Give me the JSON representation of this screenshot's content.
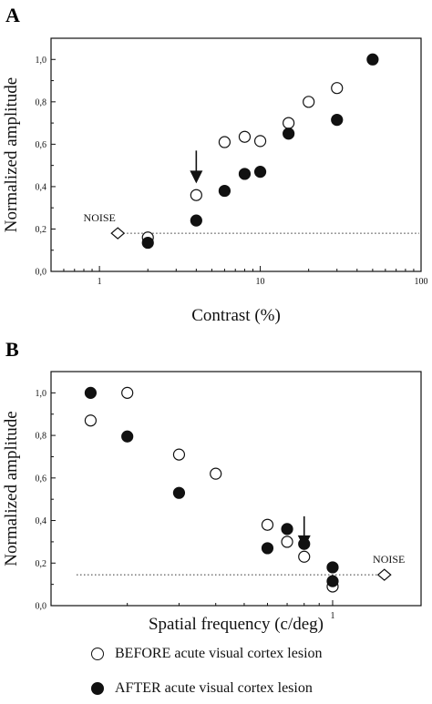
{
  "chart_data": [
    {
      "panel": "A",
      "type": "scatter",
      "x_scale": "log",
      "xlim": [
        0.5,
        100
      ],
      "ylim": [
        0.0,
        1.1
      ],
      "xlabel": "Contrast (%)",
      "ylabel": "Normalized amplitude",
      "x_ticks": [
        1,
        10,
        100
      ],
      "x_tick_labels": [
        "1",
        "10",
        "100"
      ],
      "y_ticks": [
        0.0,
        0.2,
        0.4,
        0.6,
        0.8,
        1.0
      ],
      "y_tick_labels": [
        "0,0",
        "0,2",
        "0,4",
        "0,6",
        "0,8",
        "1,0"
      ],
      "series": [
        {
          "marker": "open-circle",
          "x": [
            2,
            4,
            6,
            8,
            10,
            15,
            20,
            30
          ],
          "y": [
            0.16,
            0.36,
            0.61,
            0.635,
            0.615,
            0.7,
            0.8,
            0.865
          ]
        },
        {
          "marker": "filled-circle",
          "x": [
            2,
            4,
            6,
            8,
            10,
            15,
            30,
            50
          ],
          "y": [
            0.135,
            0.24,
            0.38,
            0.46,
            0.47,
            0.65,
            0.715,
            1.0
          ]
        }
      ],
      "noise": {
        "label": "NOISE",
        "x": 1.3,
        "y": 0.18
      },
      "arrow_x": 4
    },
    {
      "panel": "B",
      "type": "scatter",
      "x_scale": "log",
      "xlim": [
        0.11,
        2.0
      ],
      "ylim": [
        0.0,
        1.1
      ],
      "xlabel": "Spatial frequency (c/deg)",
      "ylabel": "Normalized amplitude",
      "x_ticks": [
        1
      ],
      "x_tick_labels": [
        "1"
      ],
      "y_ticks": [
        0.0,
        0.2,
        0.4,
        0.6,
        0.8,
        1.0
      ],
      "y_tick_labels": [
        "0,0",
        "0,2",
        "0,4",
        "0,6",
        "0,8",
        "1,0"
      ],
      "series": [
        {
          "marker": "open-circle",
          "x": [
            0.15,
            0.2,
            0.3,
            0.4,
            0.6,
            0.7,
            0.8,
            1.0
          ],
          "y": [
            0.87,
            1.0,
            0.71,
            0.62,
            0.38,
            0.3,
            0.23,
            0.09
          ]
        },
        {
          "marker": "filled-circle",
          "x": [
            0.15,
            0.2,
            0.3,
            0.6,
            0.7,
            0.8,
            1.0
          ],
          "y": [
            1.0,
            0.795,
            0.53,
            0.27,
            0.36,
            0.29,
            0.18
          ]
        },
        {
          "marker": "filled-circle",
          "x": [
            1.0
          ],
          "y": [
            0.115
          ]
        }
      ],
      "noise": {
        "label": "NOISE",
        "x": 1.5,
        "y": 0.145
      },
      "arrow_x": 0.8
    }
  ],
  "panels": {
    "a": "A",
    "b": "B"
  },
  "legend": {
    "before": "BEFORE acute visual cortex lesion",
    "after": "AFTER acute visual cortex lesion"
  }
}
